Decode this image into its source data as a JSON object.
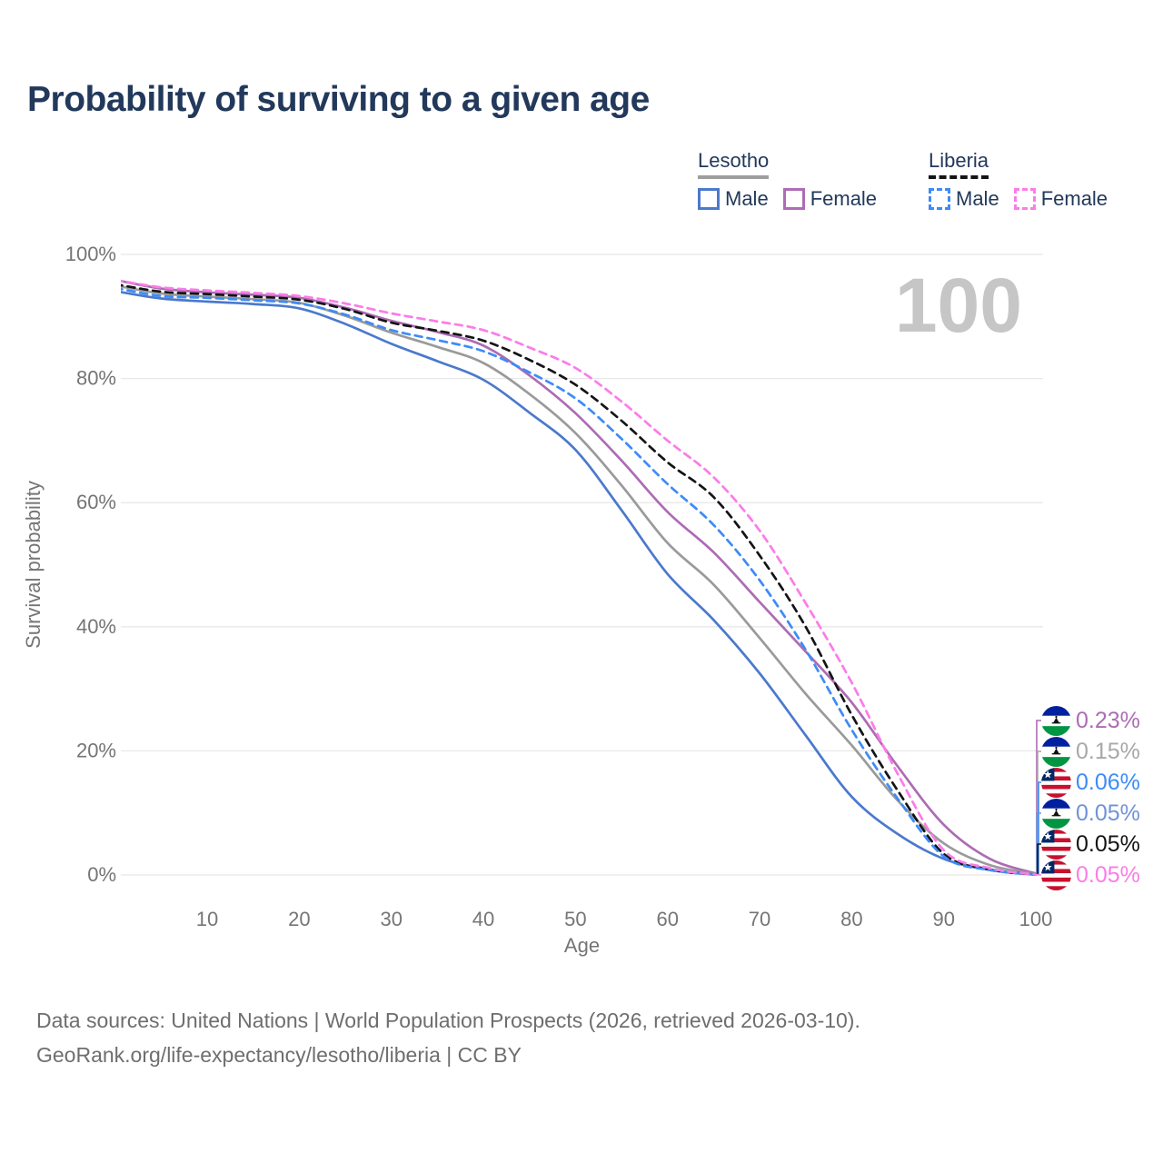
{
  "page": {
    "title": "Probability of surviving to a given age",
    "watermark_age": "100",
    "footer_line1": "Data sources: United Nations | World Population Prospects (2026, retrieved 2026-03-10).",
    "footer_line2": "GeoRank.org/life-expectancy/lesotho/liberia | CC BY"
  },
  "legend": {
    "groups": [
      {
        "id": "lesotho",
        "label": "Lesotho",
        "dashed": false,
        "underline_color": "#9e9e9e",
        "items": [
          {
            "label": "Male",
            "color": "#4b79cc"
          },
          {
            "label": "Female",
            "color": "#ad6cb4"
          }
        ]
      },
      {
        "id": "liberia",
        "label": "Liberia",
        "dashed": true,
        "underline_color": "#141414",
        "items": [
          {
            "label": "Male",
            "color": "#3d8bf8"
          },
          {
            "label": "Female",
            "color": "#fb7ce8"
          }
        ]
      }
    ]
  },
  "chart_data": {
    "type": "line",
    "title": "Probability of surviving to a given age",
    "xlabel": "Age",
    "ylabel": "Survival probability",
    "xlim": [
      0,
      100
    ],
    "ylim": [
      0,
      100
    ],
    "grid": true,
    "legend_position": "top-right",
    "hover_age": 100,
    "x_ticks": [
      10,
      20,
      30,
      40,
      50,
      60,
      70,
      80,
      90,
      100
    ],
    "y_ticks": [
      {
        "value": 0,
        "label": "0%"
      },
      {
        "value": 20,
        "label": "20%"
      },
      {
        "value": 40,
        "label": "40%"
      },
      {
        "value": 60,
        "label": "60%"
      },
      {
        "value": 80,
        "label": "80%"
      },
      {
        "value": 100,
        "label": "100%"
      }
    ],
    "x": [
      0,
      5,
      10,
      15,
      20,
      25,
      30,
      35,
      40,
      45,
      50,
      55,
      60,
      65,
      70,
      75,
      80,
      85,
      90,
      95,
      100
    ],
    "series": [
      {
        "name": "Lesotho Male",
        "country": "lesotho",
        "sex": "male",
        "color": "#4b79cc",
        "dashed": false,
        "values": [
          94.1,
          92.9,
          92.4,
          92.0,
          91.3,
          88.8,
          85.6,
          82.8,
          79.8,
          74.5,
          68.5,
          58.8,
          48.5,
          41.1,
          32.5,
          22.5,
          12.6,
          6.6,
          2.6,
          0.8,
          0.05
        ]
      },
      {
        "name": "Lesotho Female",
        "country": "lesotho",
        "sex": "female",
        "color": "#ad6cb4",
        "dashed": false,
        "values": [
          95.9,
          94.5,
          93.9,
          93.5,
          93.0,
          91.4,
          89.3,
          87.5,
          85.3,
          80.5,
          74.4,
          66.8,
          58.5,
          52.0,
          44.0,
          36.0,
          27.8,
          17.5,
          8.1,
          2.6,
          0.23
        ]
      },
      {
        "name": "Lesotho Both sexes",
        "country": "lesotho",
        "sex": "both",
        "color": "#9a9a9a",
        "dashed": false,
        "values": [
          95.0,
          93.7,
          93.2,
          92.8,
          92.2,
          90.1,
          87.4,
          85.1,
          82.5,
          77.5,
          71.2,
          62.8,
          53.5,
          46.8,
          38.2,
          29.2,
          20.9,
          12.0,
          5.1,
          1.6,
          0.15
        ]
      },
      {
        "name": "Liberia Both sexes",
        "country": "liberia",
        "sex": "both",
        "color": "#141414",
        "dashed": true,
        "values": [
          95.2,
          94.0,
          93.6,
          93.2,
          92.7,
          91.2,
          89.0,
          87.7,
          86.1,
          83.0,
          79.0,
          73.2,
          66.5,
          60.9,
          51.5,
          40.0,
          25.8,
          13.6,
          3.4,
          0.9,
          0.05
        ]
      },
      {
        "name": "Liberia Male",
        "country": "liberia",
        "sex": "male",
        "color": "#3d8bf8",
        "dashed": true,
        "values": [
          94.6,
          93.3,
          93.0,
          92.6,
          92.1,
          90.3,
          87.8,
          86.2,
          84.4,
          81.0,
          76.8,
          70.3,
          63.0,
          56.4,
          47.5,
          36.3,
          23.4,
          12.3,
          3.0,
          0.8,
          0.06
        ]
      },
      {
        "name": "Liberia Female",
        "country": "liberia",
        "sex": "female",
        "color": "#fb7ce8",
        "dashed": true,
        "values": [
          95.9,
          94.7,
          94.2,
          93.8,
          93.3,
          92.1,
          90.5,
          89.2,
          87.8,
          85.0,
          81.7,
          76.3,
          70.0,
          64.1,
          55.5,
          43.8,
          31.0,
          16.3,
          4.0,
          1.1,
          0.05
        ]
      }
    ],
    "end_labels": [
      {
        "series": "Lesotho Female",
        "country": "lesotho",
        "icon": "lesotho-flag",
        "value": "0.23%",
        "color": "#ad6cb4"
      },
      {
        "series": "Lesotho Both sexes",
        "country": "lesotho",
        "icon": "lesotho-flag",
        "value": "0.15%",
        "color": "#a8a8a8"
      },
      {
        "series": "Liberia Male",
        "country": "liberia",
        "icon": "liberia-flag",
        "value": "0.06%",
        "color": "#3d8bf8"
      },
      {
        "series": "Lesotho Male",
        "country": "lesotho",
        "icon": "lesotho-flag",
        "value": "0.05%",
        "color": "#6f93d8"
      },
      {
        "series": "Liberia Both sexes",
        "country": "liberia",
        "icon": "liberia-flag",
        "value": "0.05%",
        "color": "#141414"
      },
      {
        "series": "Liberia Female",
        "country": "liberia",
        "icon": "liberia-flag",
        "value": "0.05%",
        "color": "#fb7ce8"
      }
    ]
  }
}
